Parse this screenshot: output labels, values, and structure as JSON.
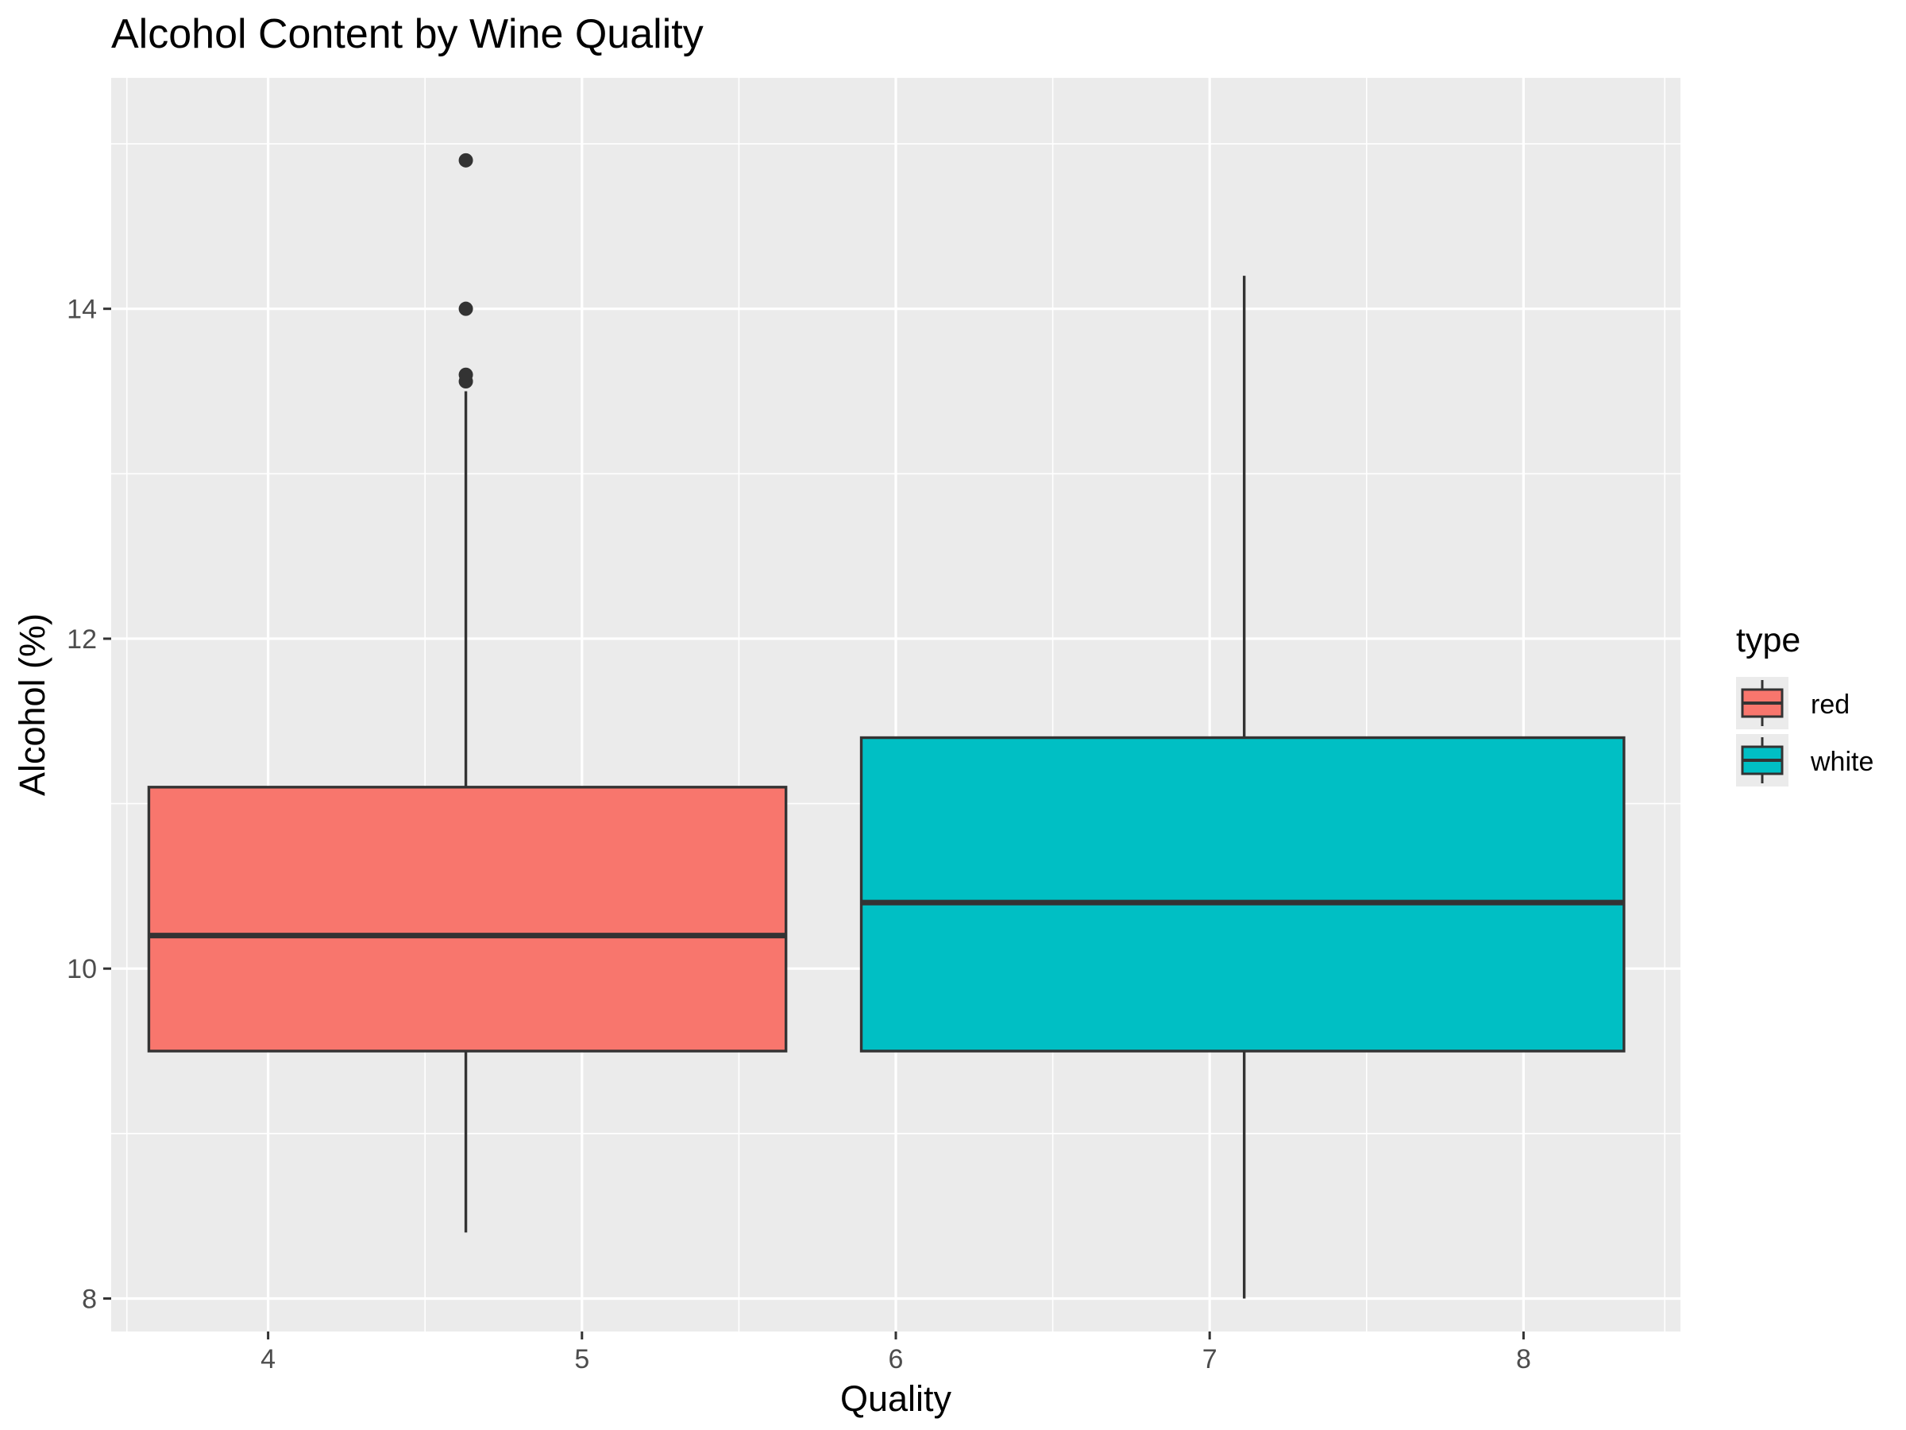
{
  "chart_data": {
    "type": "boxplot",
    "title": "Alcohol Content by Wine Quality",
    "xlabel": "Quality",
    "ylabel": "Alcohol (%)",
    "x_ticks": [
      "4",
      "5",
      "6",
      "7",
      "8"
    ],
    "xlim": [
      3.5,
      8.5
    ],
    "ylim": [
      7.8,
      15.4
    ],
    "y_ticks": [
      8,
      10,
      12,
      14
    ],
    "grid": true,
    "legend": {
      "title": "type",
      "position": "right",
      "entries": [
        {
          "label": "red",
          "color": "#F8766D"
        },
        {
          "label": "white",
          "color": "#00BFC4"
        }
      ]
    },
    "series": [
      {
        "name": "red",
        "color": "#F8766D",
        "x_center": 4.63,
        "x_range": [
          3.62,
          5.65
        ],
        "whisker_low": 8.4,
        "q1": 9.5,
        "median": 10.2,
        "q3": 11.1,
        "whisker_high": 13.5,
        "outliers": [
          13.56,
          13.6,
          14.0,
          14.9
        ]
      },
      {
        "name": "white",
        "color": "#00BFC4",
        "x_center": 7.11,
        "x_range": [
          5.89,
          8.32
        ],
        "whisker_low": 8.0,
        "q1": 9.5,
        "median": 10.4,
        "q3": 11.4,
        "whisker_high": 14.2,
        "outliers": []
      }
    ]
  }
}
